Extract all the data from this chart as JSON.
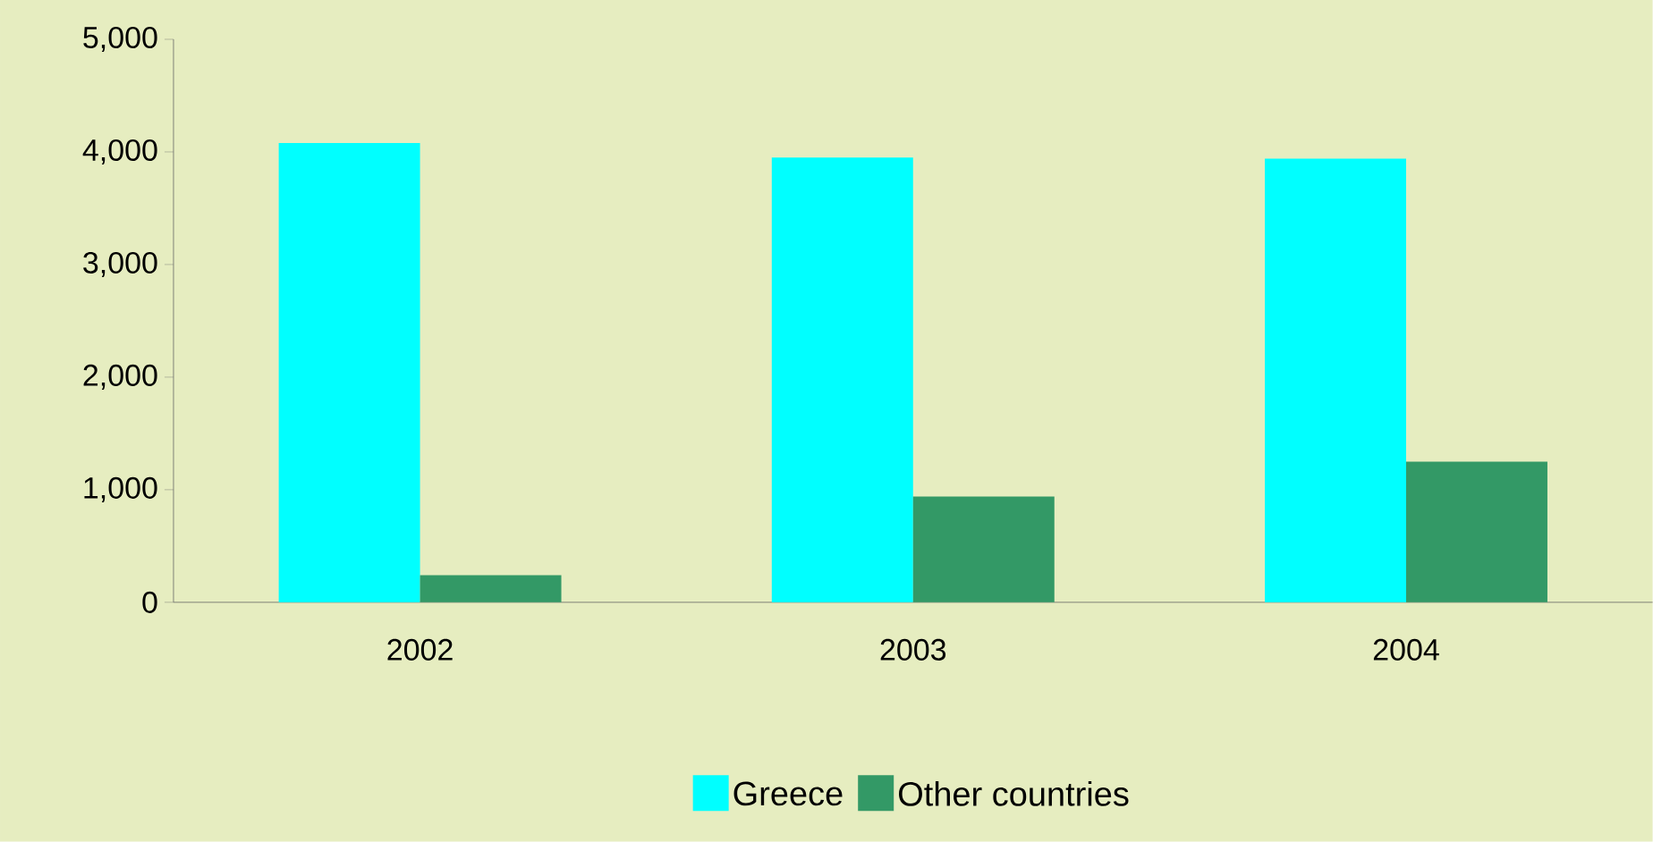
{
  "chart_data": {
    "type": "bar",
    "categories": [
      "2002",
      "2003",
      "2004"
    ],
    "series": [
      {
        "name": "Greece",
        "color": "#00ffff",
        "values": [
          4080,
          3950,
          3940
        ]
      },
      {
        "name": "Other countries",
        "color": "#339966",
        "values": [
          240,
          940,
          1250
        ]
      }
    ],
    "ylim": [
      0,
      5000
    ],
    "yticks": [
      0,
      {
        "value": 1000,
        "label": "1,000"
      },
      {
        "value": 2000,
        "label": "2,000"
      },
      {
        "value": 3000,
        "label": "3,000"
      },
      {
        "value": 4000,
        "label": "4,000"
      },
      {
        "value": 5000,
        "label": "5,000"
      }
    ],
    "legend": "bottom",
    "grid": false
  }
}
